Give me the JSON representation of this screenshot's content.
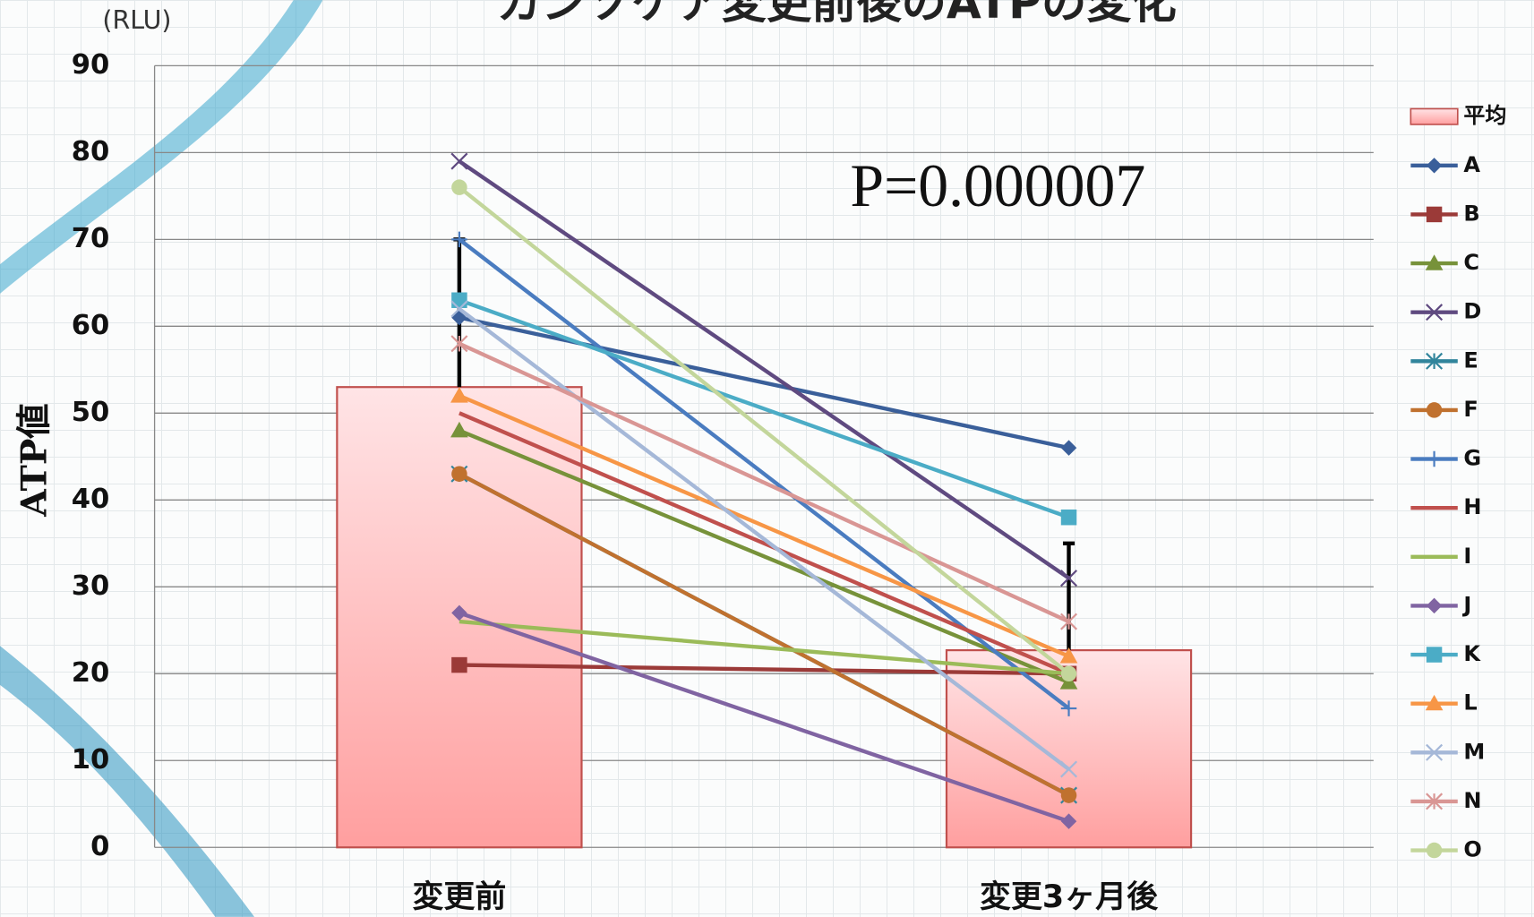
{
  "chart_data": {
    "type": "bar_line",
    "title": "カンソケア変更前後のATPの変化",
    "y_unit": "(RLU)",
    "y_label": "ATP値",
    "annotation": "P=0.000007",
    "categories": [
      "変更前",
      "変更3ヶ月後"
    ],
    "ylim": [
      0,
      90
    ],
    "yticks": [
      0,
      10,
      20,
      30,
      40,
      50,
      60,
      70,
      80,
      90
    ],
    "grid": true,
    "legend": "right",
    "bars": {
      "name": "平均",
      "color": "#ff9f9f",
      "values": [
        53,
        22.7
      ],
      "errors": [
        17,
        12.3
      ]
    },
    "series": [
      {
        "name": "A",
        "color": "#3a5f9a",
        "marker": "diamond",
        "values": [
          61,
          46
        ]
      },
      {
        "name": "B",
        "color": "#9b3a38",
        "marker": "square",
        "values": [
          21,
          20
        ]
      },
      {
        "name": "C",
        "color": "#77923a",
        "marker": "triangle",
        "values": [
          48,
          19
        ]
      },
      {
        "name": "D",
        "color": "#5f4a80",
        "marker": "x",
        "values": [
          79,
          31
        ]
      },
      {
        "name": "E",
        "color": "#31859c",
        "marker": "star",
        "values": [
          43,
          6
        ]
      },
      {
        "name": "F",
        "color": "#c0712f",
        "marker": "circle",
        "values": [
          43,
          6
        ]
      },
      {
        "name": "G",
        "color": "#4a7cc0",
        "marker": "plus",
        "values": [
          70,
          16
        ]
      },
      {
        "name": "H",
        "color": "#c0504d",
        "marker": "none",
        "values": [
          50,
          20
        ]
      },
      {
        "name": "I",
        "color": "#9bbb59",
        "marker": "none",
        "values": [
          26,
          20
        ]
      },
      {
        "name": "J",
        "color": "#8064a2",
        "marker": "diamond",
        "values": [
          27,
          3
        ]
      },
      {
        "name": "K",
        "color": "#4bacc6",
        "marker": "square",
        "values": [
          63,
          38
        ]
      },
      {
        "name": "L",
        "color": "#f79646",
        "marker": "triangle",
        "values": [
          52,
          22
        ]
      },
      {
        "name": "M",
        "color": "#a5b8d8",
        "marker": "x",
        "values": [
          62,
          9
        ]
      },
      {
        "name": "N",
        "color": "#d99694",
        "marker": "star",
        "values": [
          58,
          26
        ]
      },
      {
        "name": "O",
        "color": "#c3d69b",
        "marker": "circle",
        "values": [
          76,
          20
        ]
      }
    ]
  }
}
